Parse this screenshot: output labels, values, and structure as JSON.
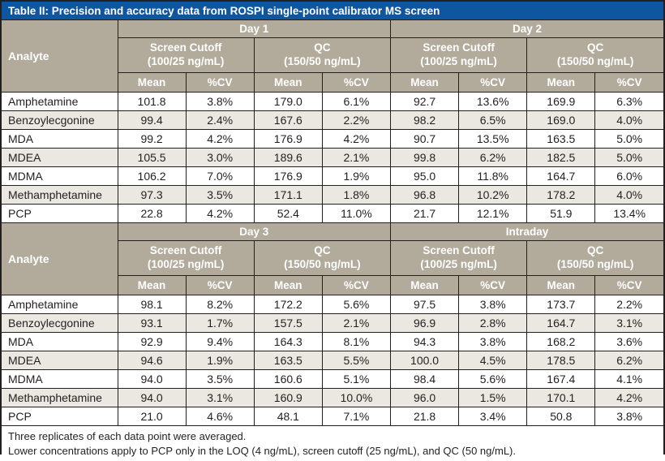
{
  "title": "Table II: Precision and accuracy data from ROSPI single-point calibrator MS screen",
  "colors": {
    "title_bg": "#0e56a0",
    "header_bg": "#b2ab9c",
    "row_alt": "#ebe8e2",
    "border": "#231f20",
    "text": "#231f20",
    "header_text": "#ffffff"
  },
  "header": {
    "analyte_label": "Analyte",
    "screen_cutoff_label": "Screen Cutoff",
    "screen_cutoff_sub": "(100/25 ng/mL)",
    "qc_label": "QC",
    "qc_sub": "(150/50 ng/mL)",
    "mean_label": "Mean",
    "cv_label": "%CV"
  },
  "sections": [
    {
      "day_labels": [
        "Day 1",
        "Day 2"
      ],
      "rows": [
        {
          "analyte": "Amphetamine",
          "values": [
            "101.8",
            "3.8%",
            "179.0",
            "6.1%",
            "92.7",
            "13.6%",
            "169.9",
            "6.3%"
          ]
        },
        {
          "analyte": "Benzoylecgonine",
          "values": [
            "99.4",
            "2.4%",
            "167.6",
            "2.2%",
            "98.2",
            "6.5%",
            "169.0",
            "4.0%"
          ]
        },
        {
          "analyte": "MDA",
          "values": [
            "99.2",
            "4.2%",
            "176.9",
            "4.2%",
            "90.7",
            "13.5%",
            "163.5",
            "5.0%"
          ]
        },
        {
          "analyte": "MDEA",
          "values": [
            "105.5",
            "3.0%",
            "189.6",
            "2.1%",
            "99.8",
            "6.2%",
            "182.5",
            "5.0%"
          ]
        },
        {
          "analyte": "MDMA",
          "values": [
            "106.2",
            "7.0%",
            "176.9",
            "1.9%",
            "95.0",
            "11.8%",
            "164.7",
            "6.0%"
          ]
        },
        {
          "analyte": "Methamphetamine",
          "values": [
            "97.3",
            "3.5%",
            "171.1",
            "1.8%",
            "96.8",
            "10.2%",
            "178.2",
            "4.0%"
          ]
        },
        {
          "analyte": "PCP",
          "values": [
            "22.8",
            "4.2%",
            "52.4",
            "11.0%",
            "21.7",
            "12.1%",
            "51.9",
            "13.4%"
          ]
        }
      ]
    },
    {
      "day_labels": [
        "Day 3",
        "Intraday"
      ],
      "rows": [
        {
          "analyte": "Amphetamine",
          "values": [
            "98.1",
            "8.2%",
            "172.2",
            "5.6%",
            "97.5",
            "3.8%",
            "173.7",
            "2.2%"
          ]
        },
        {
          "analyte": "Benzoylecgonine",
          "values": [
            "93.1",
            "1.7%",
            "157.5",
            "2.1%",
            "96.9",
            "2.8%",
            "164.7",
            "3.1%"
          ]
        },
        {
          "analyte": "MDA",
          "values": [
            "92.9",
            "9.4%",
            "164.3",
            "8.1%",
            "94.3",
            "3.8%",
            "168.2",
            "3.6%"
          ]
        },
        {
          "analyte": "MDEA",
          "values": [
            "94.6",
            "1.9%",
            "163.5",
            "5.5%",
            "100.0",
            "4.5%",
            "178.5",
            "6.2%"
          ]
        },
        {
          "analyte": "MDMA",
          "values": [
            "94.0",
            "3.5%",
            "160.6",
            "5.1%",
            "98.4",
            "5.6%",
            "167.4",
            "4.1%"
          ]
        },
        {
          "analyte": "Methamphetamine",
          "values": [
            "94.0",
            "3.1%",
            "160.9",
            "10.0%",
            "96.0",
            "1.5%",
            "170.1",
            "4.2%"
          ]
        },
        {
          "analyte": "PCP",
          "values": [
            "21.0",
            "4.6%",
            "48.1",
            "7.1%",
            "21.8",
            "3.4%",
            "50.8",
            "3.8%"
          ]
        }
      ]
    }
  ],
  "footnotes": [
    "Three replicates of each data point were averaged.",
    "Lower concentrations apply to PCP only in the LOQ (4 ng/mL), screen cutoff (25 ng/mL), and QC (50 ng/mL)."
  ]
}
